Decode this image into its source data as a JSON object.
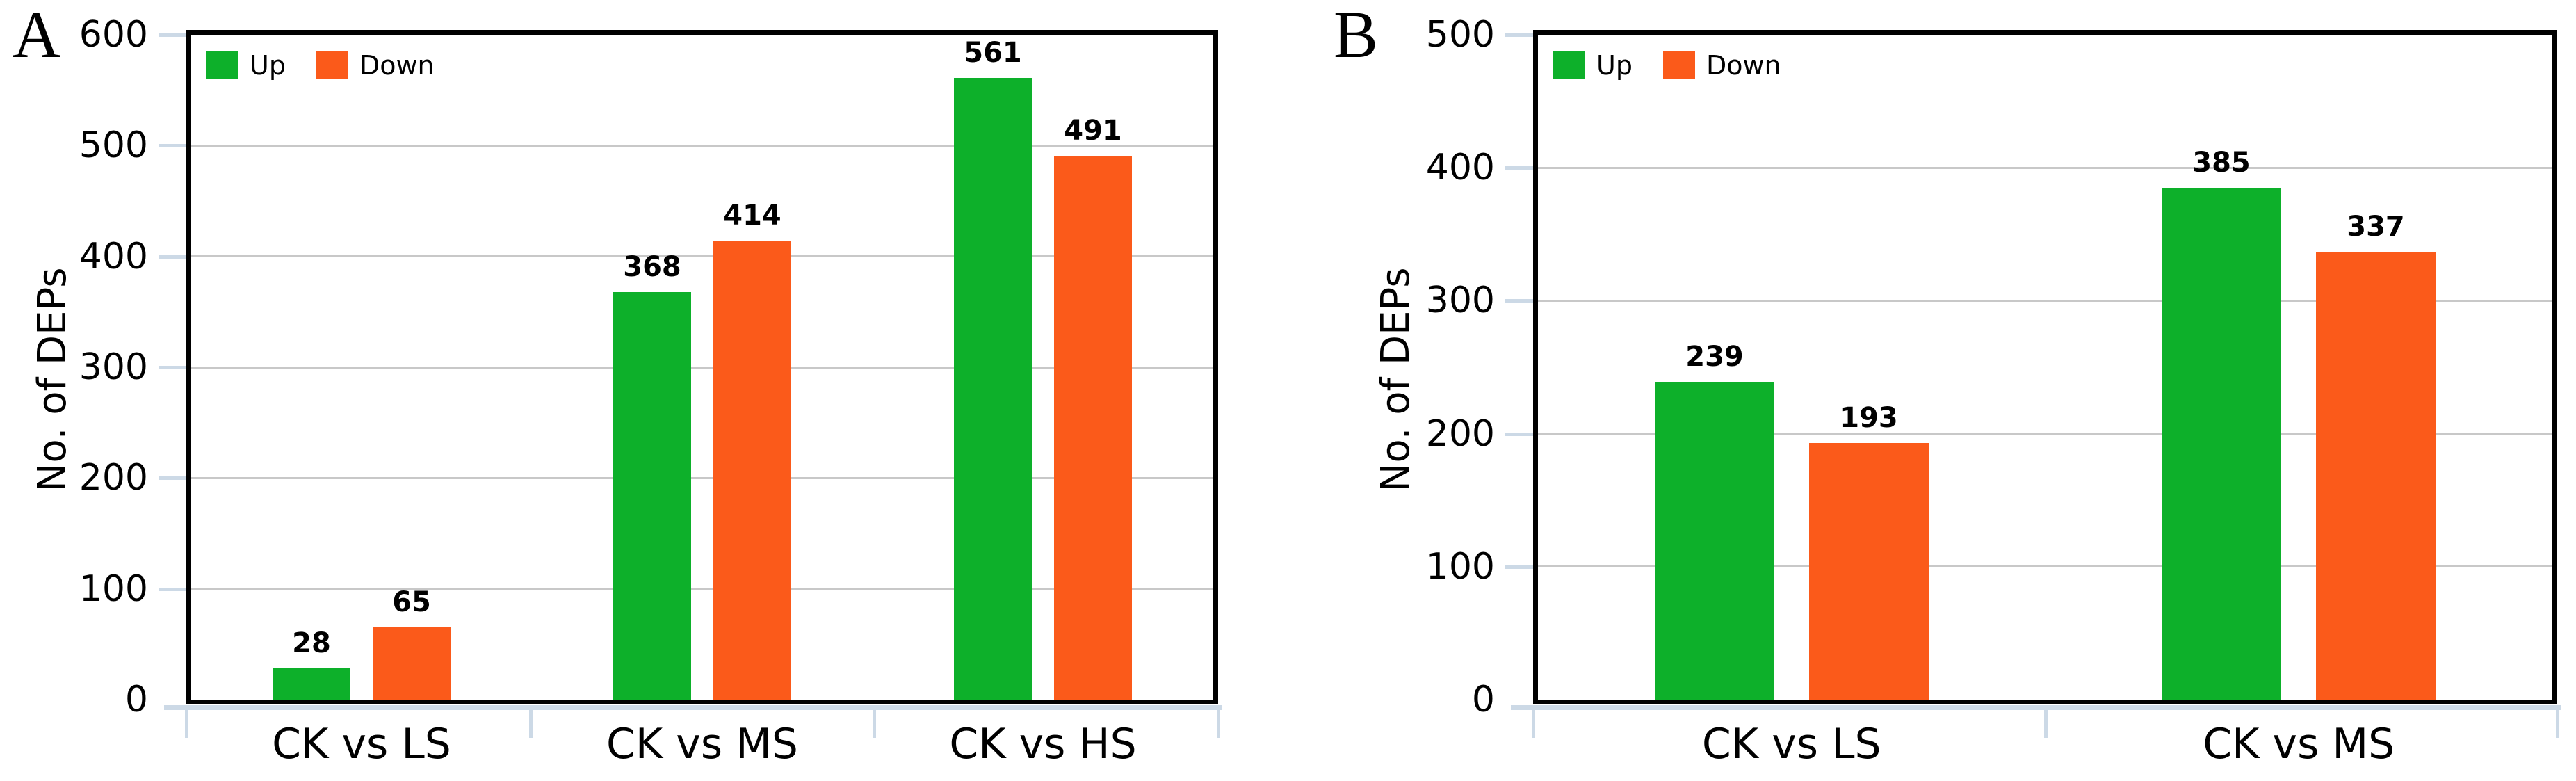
{
  "figure": {
    "background": "#ffffff"
  },
  "style": {
    "up_color": "#0db02a",
    "down_color": "#fb5a1a",
    "grid_color": "#c8c8c8",
    "axis_color": "#000000",
    "blue_tick_color": "#ccd9e6",
    "text_color": "#000000"
  },
  "chart_data": [
    {
      "type": "bar",
      "panel_letter": "A",
      "ylabel": "No. of DEPs",
      "categories": [
        "CK vs LS",
        "CK vs MS",
        "CK vs HS"
      ],
      "series": [
        {
          "name": "Up",
          "color": "#0db02a",
          "values": [
            28,
            368,
            561
          ]
        },
        {
          "name": "Down",
          "color": "#fb5a1a",
          "values": [
            65,
            414,
            491
          ]
        }
      ],
      "ylim": [
        0,
        600
      ],
      "yticks": [
        0,
        100,
        200,
        300,
        400,
        500,
        600
      ],
      "grid": true,
      "legend_position": "top-left"
    },
    {
      "type": "bar",
      "panel_letter": "B",
      "ylabel": "No. of DEPs",
      "categories": [
        "CK vs LS",
        "CK vs MS"
      ],
      "series": [
        {
          "name": "Up",
          "color": "#0db02a",
          "values": [
            239,
            385
          ]
        },
        {
          "name": "Down",
          "color": "#fb5a1a",
          "values": [
            193,
            337
          ]
        }
      ],
      "ylim": [
        0,
        500
      ],
      "yticks": [
        0,
        100,
        200,
        300,
        400,
        500
      ],
      "grid": true,
      "legend_position": "top-left"
    }
  ]
}
